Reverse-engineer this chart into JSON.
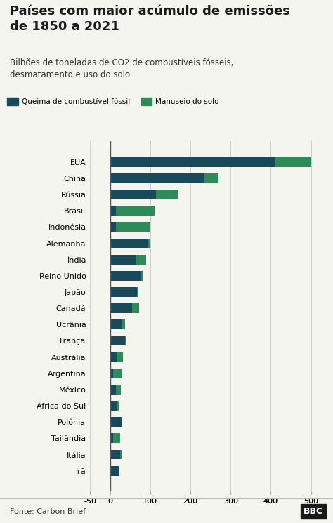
{
  "title": "Países com maior acúmulo de emissões\nde 1850 a 2021",
  "subtitle": "Bilhões de toneladas de CO2 de combustíveis fósseis,\ndesmatamento e uso do solo",
  "source": "Fonte: Carbon Brief",
  "legend1": "Queima de combustível fóssil",
  "legend2": "Manuseio do solo",
  "color_fossil": "#1a4a5a",
  "color_land": "#2e8b57",
  "background": "#f5f5f0",
  "countries": [
    "EUA",
    "China",
    "Rússia",
    "Brasil",
    "Indonésia",
    "Alemanha",
    "Índia",
    "Reino Unido",
    "Japão",
    "Canadá",
    "Ucrânia",
    "França",
    "Austrália",
    "Argentina",
    "México",
    "África do Sul",
    "Polônia",
    "Tailândia",
    "Itália",
    "Irã"
  ],
  "fossil": [
    410,
    235,
    115,
    15,
    15,
    95,
    65,
    78,
    68,
    55,
    30,
    38,
    17,
    8,
    15,
    17,
    28,
    8,
    26,
    22
  ],
  "land": [
    90,
    35,
    55,
    95,
    85,
    5,
    25,
    5,
    3,
    18,
    8,
    2,
    16,
    20,
    12,
    5,
    3,
    18,
    3,
    2
  ],
  "xlim": [
    -50,
    530
  ],
  "xticks": [
    -50,
    0,
    100,
    200,
    300,
    400,
    500
  ],
  "bar_height": 0.6
}
